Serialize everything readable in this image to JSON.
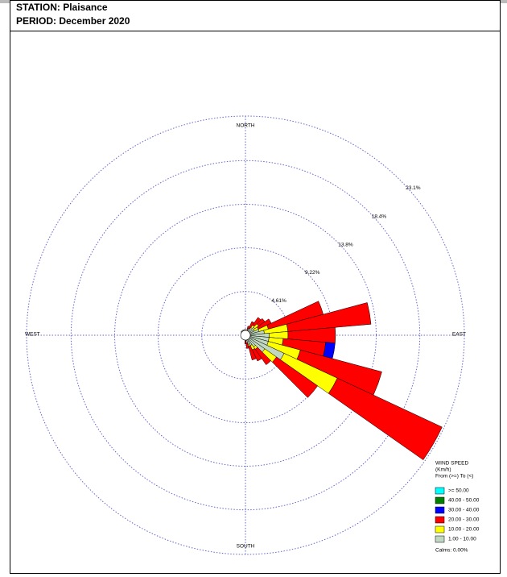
{
  "chart_data": {
    "type": "windrose",
    "title": "STATION: Plaisance",
    "subtitle": "PERIOD: December 2020",
    "direction_labels": [
      "NORTH",
      "EAST",
      "SOUTH",
      "WEST"
    ],
    "directions": [
      0,
      10,
      20,
      30,
      40,
      50,
      60,
      70,
      80,
      90,
      100,
      110,
      120,
      130,
      140,
      150,
      160,
      170,
      180,
      190,
      200,
      210,
      220,
      230,
      240,
      250,
      260,
      270,
      280,
      290,
      300,
      310,
      320,
      330,
      340,
      350
    ],
    "rlim": [
      0,
      23.1
    ],
    "rticks": [
      {
        "value": 4.61,
        "label": "4.61%"
      },
      {
        "value": 9.22,
        "label": "9.22%"
      },
      {
        "value": 13.8,
        "label": "13.8%"
      },
      {
        "value": 18.4,
        "label": "18.4%"
      },
      {
        "value": 23.1,
        "label": "23.1%"
      }
    ],
    "legend_title": [
      "WIND SPEED",
      "(Km/h)",
      "From (>=) To (<)"
    ],
    "calms": "Calms: 0.00%",
    "series": [
      {
        "name": "1.00 - 10.00",
        "color": "#c0d8c0",
        "values": [
          0.6,
          0.5,
          0.6,
          0.8,
          1.0,
          1.2,
          1.0,
          1.5,
          2.0,
          2.5,
          2.5,
          2.5,
          4.5,
          2.5,
          1.5,
          1.2,
          1.0,
          0.8,
          0.6,
          0.5,
          0.4,
          0.4,
          0.3,
          0.3,
          0.3,
          0.3,
          0.3,
          0.4,
          0.4,
          0.5,
          0.5,
          0.6,
          0.6,
          0.6,
          0.6,
          0.6
        ]
      },
      {
        "name": "10.00 - 20.00",
        "color": "#ffff00",
        "values": [
          0,
          0,
          0,
          0,
          0.3,
          0.5,
          0.5,
          1.0,
          2.5,
          2.0,
          1.5,
          3.5,
          6.2,
          1.5,
          0.3,
          0.5,
          0.2,
          0,
          0,
          0,
          0,
          0,
          0,
          0,
          0,
          0,
          0,
          0,
          0,
          0,
          0,
          0,
          0,
          0,
          0,
          0
        ]
      },
      {
        "name": "20.00 - 30.00",
        "color": "#ff0000",
        "values": [
          0,
          0,
          0.4,
          0.8,
          1.0,
          0.8,
          1.5,
          6.0,
          8.8,
          5.0,
          4.5,
          8.9,
          12.2,
          5.3,
          2.0,
          1.3,
          1.5,
          0.6,
          0.3,
          0,
          0,
          0,
          0,
          0,
          0,
          0,
          0,
          0,
          0,
          0,
          0,
          0,
          0,
          0,
          0,
          0
        ]
      },
      {
        "name": "30.00 - 40.00",
        "color": "#0000ff",
        "values": [
          0,
          0,
          0,
          0,
          0,
          0,
          0,
          0,
          0,
          0,
          1.0,
          0,
          0,
          0,
          0,
          0,
          0,
          0,
          0,
          0,
          0,
          0,
          0,
          0,
          0,
          0,
          0,
          0,
          0,
          0,
          0,
          0,
          0,
          0,
          0,
          0
        ]
      },
      {
        "name": "40.00 - 50.00",
        "color": "#008000",
        "values": [
          0,
          0,
          0,
          0,
          0,
          0,
          0,
          0,
          0,
          0,
          0,
          0,
          0,
          0,
          0,
          0,
          0,
          0,
          0,
          0,
          0,
          0,
          0,
          0,
          0,
          0,
          0,
          0,
          0,
          0,
          0,
          0,
          0,
          0,
          0,
          0
        ]
      },
      {
        "name": ">= 50.00",
        "color": "#00ffff",
        "values": [
          0,
          0,
          0,
          0,
          0,
          0,
          0,
          0,
          0,
          0,
          0,
          0,
          0,
          0,
          0,
          0,
          0,
          0,
          0,
          0,
          0,
          0,
          0,
          0,
          0,
          0,
          0,
          0,
          0,
          0,
          0,
          0,
          0,
          0,
          0,
          0
        ]
      }
    ]
  }
}
